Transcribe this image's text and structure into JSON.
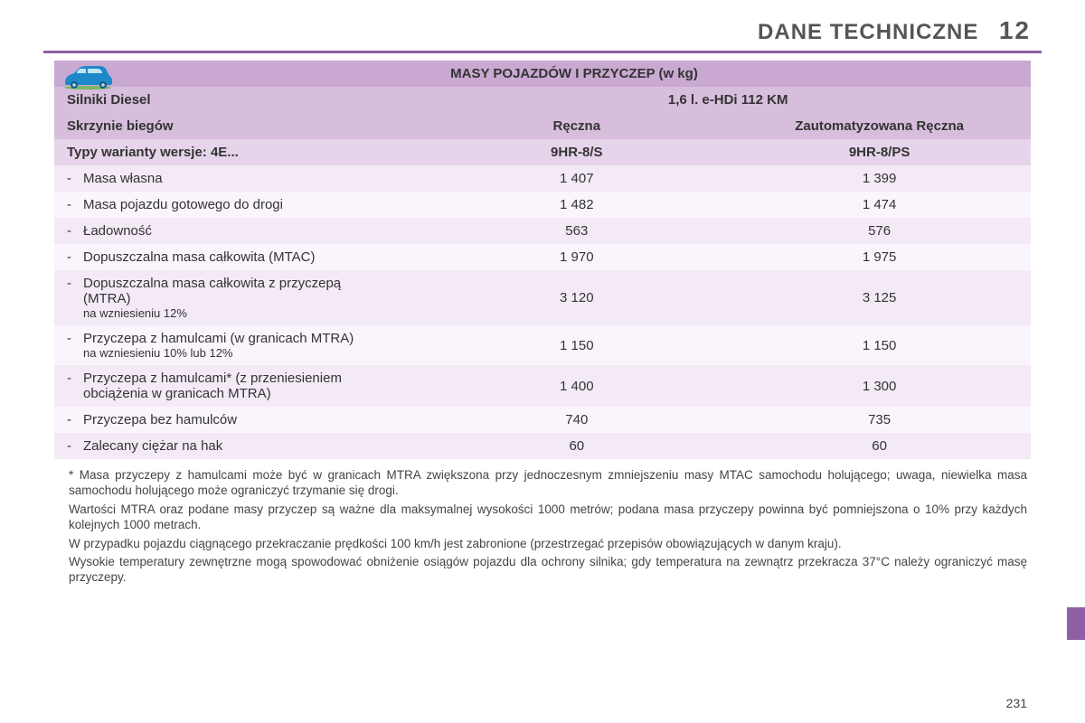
{
  "colors": {
    "accent": "#8e5fa2",
    "purple_rule": "#8e5fa2",
    "header_bg_dark": "#c9a9d1",
    "header_bg_mid": "#d7bedd",
    "header_bg_light": "#e6d4ea",
    "row_light": "#f3eaf6",
    "row_lighter": "#faf5fc",
    "car_body": "#1e88c9",
    "car_dark": "#0f5f8f",
    "side_tab": "#8e5fa2"
  },
  "header": {
    "title": "DANE TECHNICZNE",
    "chapter": "12"
  },
  "table": {
    "main_title": "MASY POJAZDÓW I PRZYCZEP (w kg)",
    "rows_header": [
      {
        "label": "Silniki Diesel",
        "span": "1,6 l. e-HDi 112 KM"
      },
      {
        "label": "Skrzynie biegów",
        "cells": [
          "Ręczna",
          "Zautomatyzowana Ręczna"
        ]
      },
      {
        "label": "Typy warianty wersje: 4E...",
        "cells": [
          "9HR-8/S",
          "9HR-8/PS"
        ]
      }
    ],
    "col_widths": [
      "38%",
      "31%",
      "31%"
    ],
    "data_rows": [
      {
        "label": "Masa własna",
        "v": [
          "1 407",
          "1 399"
        ]
      },
      {
        "label": "Masa pojazdu gotowego do drogi",
        "v": [
          "1 482",
          "1 474"
        ]
      },
      {
        "label": "Ładowność",
        "v": [
          "563",
          "576"
        ]
      },
      {
        "label": "Dopuszczalna masa całkowita (MTAC)",
        "v": [
          "1 970",
          "1 975"
        ]
      },
      {
        "label": "Dopuszczalna masa całkowita z przyczepą (MTRA)",
        "sub": "na wzniesieniu 12%",
        "v": [
          "3 120",
          "3 125"
        ]
      },
      {
        "label": "Przyczepa z hamulcami (w granicach MTRA)",
        "sub": "na wzniesieniu 10% lub 12%",
        "v": [
          "1 150",
          "1 150"
        ]
      },
      {
        "label": "Przyczepa z hamulcami* (z przeniesieniem obciążenia w granicach MTRA)",
        "v": [
          "1 400",
          "1 300"
        ]
      },
      {
        "label": "Przyczepa bez hamulców",
        "v": [
          "740",
          "735"
        ]
      },
      {
        "label": "Zalecany ciężar na hak",
        "v": [
          "60",
          "60"
        ]
      }
    ]
  },
  "footnotes": [
    "* Masa przyczepy z hamulcami może być w granicach MTRA zwiększona przy jednoczesnym zmniejszeniu masy MTAC samochodu holującego; uwaga, niewielka masa samochodu holującego może ograniczyć trzymanie się drogi.",
    "Wartości MTRA oraz podane masy przyczep są ważne dla maksymalnej wysokości 1000 metrów; podana masa przyczepy powinna być pomniejszona o 10% przy każdych kolejnych 1000 metrach.",
    "W przypadku pojazdu ciągnącego przekraczanie prędkości 100 km/h jest zabronione (przestrzegać przepisów obowiązujących w danym kraju).",
    "Wysokie temperatury zewnętrzne mogą spowodować obniżenie osiągów pojazdu dla ochrony silnika; gdy temperatura na zewnątrz przekracza 37°C należy ograniczyć masę przyczepy."
  ],
  "page_number": "231"
}
